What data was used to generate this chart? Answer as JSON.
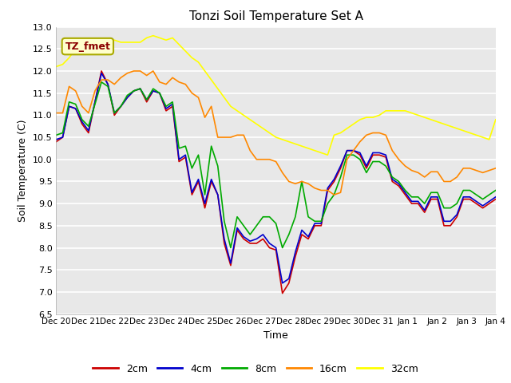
{
  "title": "Tonzi Soil Temperature Set A",
  "xlabel": "Time",
  "ylabel": "Soil Temperature (C)",
  "ylim": [
    6.5,
    13.0
  ],
  "legend_label": "TZ_fmet",
  "line_labels": [
    "2cm",
    "4cm",
    "8cm",
    "16cm",
    "32cm"
  ],
  "line_colors": [
    "#cc0000",
    "#0000cc",
    "#00aa00",
    "#ff8800",
    "#ffff00"
  ],
  "bg_color": "#ffffff",
  "plot_bg_color": "#e8e8e8",
  "x_tick_labels": [
    "Dec 20",
    "Dec 21",
    "Dec 22",
    "Dec 23",
    "Dec 24",
    "Dec 25",
    "Dec 26",
    "Dec 27",
    "Dec 28",
    "Dec 29",
    "Dec 30",
    "Dec 31",
    "Jan 1",
    "Jan 2",
    "Jan 3",
    "Jan 4"
  ],
  "data_2cm": [
    10.4,
    10.5,
    11.2,
    11.15,
    10.8,
    10.6,
    11.3,
    12.0,
    11.7,
    11.0,
    11.2,
    11.4,
    11.55,
    11.6,
    11.3,
    11.55,
    11.5,
    11.1,
    11.2,
    9.95,
    10.05,
    9.2,
    9.5,
    8.9,
    9.5,
    9.2,
    8.1,
    7.6,
    8.4,
    8.2,
    8.1,
    8.1,
    8.2,
    8.0,
    7.95,
    6.97,
    7.2,
    7.8,
    8.3,
    8.2,
    8.5,
    8.5,
    9.3,
    9.5,
    9.8,
    10.2,
    10.2,
    10.1,
    9.8,
    10.1,
    10.1,
    10.05,
    9.5,
    9.4,
    9.2,
    9.0,
    9.0,
    8.8,
    9.1,
    9.1,
    8.5,
    8.5,
    8.7,
    9.1,
    9.1,
    9.0,
    8.9,
    9.0,
    9.1
  ],
  "data_4cm": [
    10.45,
    10.5,
    11.2,
    11.15,
    10.85,
    10.65,
    11.3,
    11.95,
    11.7,
    11.05,
    11.2,
    11.4,
    11.55,
    11.6,
    11.35,
    11.55,
    11.5,
    11.15,
    11.25,
    10.0,
    10.1,
    9.25,
    9.55,
    9.0,
    9.55,
    9.2,
    8.2,
    7.65,
    8.45,
    8.25,
    8.15,
    8.2,
    8.3,
    8.1,
    8.0,
    7.2,
    7.3,
    7.9,
    8.4,
    8.25,
    8.55,
    8.55,
    9.35,
    9.55,
    9.85,
    10.2,
    10.2,
    10.15,
    9.85,
    10.15,
    10.15,
    10.1,
    9.55,
    9.45,
    9.25,
    9.05,
    9.05,
    8.85,
    9.15,
    9.15,
    8.6,
    8.6,
    8.75,
    9.15,
    9.15,
    9.05,
    8.95,
    9.05,
    9.15
  ],
  "data_8cm": [
    10.55,
    10.6,
    11.3,
    11.25,
    10.9,
    10.75,
    11.25,
    11.75,
    11.65,
    11.05,
    11.2,
    11.45,
    11.55,
    11.6,
    11.35,
    11.6,
    11.5,
    11.2,
    11.3,
    10.25,
    10.3,
    9.8,
    10.1,
    9.2,
    10.3,
    9.85,
    8.6,
    8.0,
    8.7,
    8.5,
    8.3,
    8.5,
    8.7,
    8.7,
    8.55,
    8.0,
    8.3,
    8.7,
    9.5,
    8.7,
    8.6,
    8.6,
    9.0,
    9.2,
    9.6,
    10.1,
    10.1,
    10.0,
    9.7,
    9.95,
    9.95,
    9.85,
    9.6,
    9.5,
    9.3,
    9.15,
    9.15,
    9.0,
    9.25,
    9.25,
    8.9,
    8.9,
    9.0,
    9.3,
    9.3,
    9.2,
    9.1,
    9.2,
    9.3
  ],
  "data_16cm": [
    11.05,
    11.05,
    11.65,
    11.55,
    11.2,
    11.05,
    11.55,
    11.8,
    11.8,
    11.7,
    11.85,
    11.95,
    12.0,
    12.0,
    11.9,
    12.0,
    11.75,
    11.7,
    11.85,
    11.75,
    11.7,
    11.5,
    11.4,
    10.95,
    11.2,
    10.5,
    10.5,
    10.5,
    10.55,
    10.55,
    10.2,
    10.0,
    10.0,
    10.0,
    9.95,
    9.7,
    9.5,
    9.45,
    9.5,
    9.45,
    9.35,
    9.3,
    9.3,
    9.2,
    9.25,
    10.0,
    10.2,
    10.4,
    10.55,
    10.6,
    10.6,
    10.55,
    10.2,
    10.0,
    9.85,
    9.75,
    9.7,
    9.6,
    9.72,
    9.72,
    9.5,
    9.5,
    9.6,
    9.8,
    9.8,
    9.75,
    9.7,
    9.75,
    9.8
  ],
  "data_32cm": [
    12.1,
    12.15,
    12.3,
    12.5,
    12.6,
    12.65,
    12.7,
    12.6,
    12.65,
    12.7,
    12.65,
    12.65,
    12.65,
    12.65,
    12.75,
    12.8,
    12.75,
    12.7,
    12.75,
    12.6,
    12.45,
    12.3,
    12.2,
    12.0,
    11.8,
    11.6,
    11.4,
    11.2,
    11.1,
    11.0,
    10.9,
    10.8,
    10.7,
    10.6,
    10.5,
    10.45,
    10.4,
    10.35,
    10.3,
    10.25,
    10.2,
    10.15,
    10.1,
    10.55,
    10.6,
    10.7,
    10.8,
    10.9,
    10.95,
    10.95,
    11.0,
    11.1,
    11.1,
    11.1,
    11.1,
    11.05,
    11.0,
    10.95,
    10.9,
    10.85,
    10.8,
    10.75,
    10.7,
    10.65,
    10.6,
    10.55,
    10.5,
    10.45,
    10.9
  ]
}
